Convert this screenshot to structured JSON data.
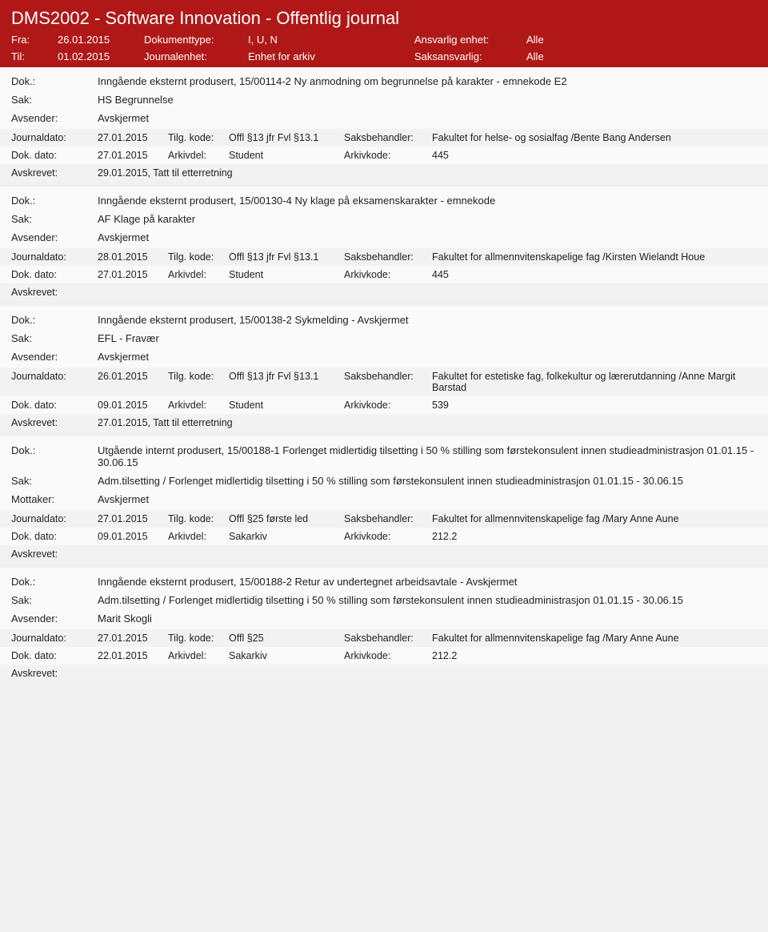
{
  "header": {
    "title": "DMS2002 - Software Innovation - Offentlig journal",
    "fra_label": "Fra:",
    "fra_value": "26.01.2015",
    "til_label": "Til:",
    "til_value": "01.02.2015",
    "doktype_label": "Dokumenttype:",
    "doktype_value": "I, U, N",
    "journalenhet_label": "Journalenhet:",
    "journalenhet_value": "Enhet for arkiv",
    "ansvarlig_label": "Ansvarlig enhet:",
    "ansvarlig_value": "Alle",
    "saksansvarlig_label": "Saksansvarlig:",
    "saksansvarlig_value": "Alle"
  },
  "labels": {
    "dok": "Dok.:",
    "sak": "Sak:",
    "avsender": "Avsender:",
    "mottaker": "Mottaker:",
    "journaldato": "Journaldato:",
    "tilgkode": "Tilg. kode:",
    "saksbehandler": "Saksbehandler:",
    "dokdato": "Dok. dato:",
    "arkivdel": "Arkivdel:",
    "arkivkode": "Arkivkode:",
    "avskrevet": "Avskrevet:"
  },
  "entries": [
    {
      "dok": "Inngående eksternt produsert, 15/00114-2 Ny anmodning om begrunnelse på karakter - emnekode E2",
      "sak": "HS Begrunnelse",
      "party_label": "Avsender:",
      "party_value": "Avskjermet",
      "journaldato": "27.01.2015",
      "tilgkode": "Offl §13 jfr Fvl §13.1",
      "saksbehandler": "Fakultet for helse- og sosialfag /Bente Bang Andersen",
      "dokdato": "27.01.2015",
      "arkivdel": "Student",
      "arkivkode": "445",
      "avskrevet": "29.01.2015, Tatt til etterretning"
    },
    {
      "dok": "Inngående eksternt produsert, 15/00130-4 Ny klage på eksamenskarakter - emnekode",
      "sak": "AF Klage på karakter",
      "party_label": "Avsender:",
      "party_value": "Avskjermet",
      "journaldato": "28.01.2015",
      "tilgkode": "Offl §13 jfr Fvl §13.1",
      "saksbehandler": "Fakultet for allmennvitenskapelige fag /Kirsten Wielandt Houe",
      "dokdato": "27.01.2015",
      "arkivdel": "Student",
      "arkivkode": "445",
      "avskrevet": ""
    },
    {
      "dok": "Inngående eksternt produsert, 15/00138-2 Sykmelding - Avskjermet",
      "sak": "EFL - Fravær",
      "party_label": "Avsender:",
      "party_value": "Avskjermet",
      "journaldato": "26.01.2015",
      "tilgkode": "Offl §13 jfr Fvl §13.1",
      "saksbehandler": "Fakultet for estetiske fag, folkekultur og lærerutdanning /Anne Margit Barstad",
      "dokdato": "09.01.2015",
      "arkivdel": "Student",
      "arkivkode": "539",
      "avskrevet": "27.01.2015, Tatt til etterretning"
    },
    {
      "dok": "Utgående internt produsert, 15/00188-1 Forlenget midlertidig tilsetting i 50 % stilling som førstekonsulent innen studieadministrasjon 01.01.15 - 30.06.15",
      "sak": "Adm.tilsetting / Forlenget midlertidig tilsetting i 50 % stilling som førstekonsulent innen studieadministrasjon 01.01.15 - 30.06.15",
      "party_label": "Mottaker:",
      "party_value": "Avskjermet",
      "journaldato": "27.01.2015",
      "tilgkode": "Offl §25 første led",
      "saksbehandler": "Fakultet for allmennvitenskapelige fag /Mary Anne Aune",
      "dokdato": "09.01.2015",
      "arkivdel": "Sakarkiv",
      "arkivkode": "212.2",
      "avskrevet": ""
    },
    {
      "dok": "Inngående eksternt produsert, 15/00188-2 Retur av undertegnet arbeidsavtale - Avskjermet",
      "sak": "Adm.tilsetting / Forlenget midlertidig tilsetting i 50 % stilling som førstekonsulent innen studieadministrasjon 01.01.15 - 30.06.15",
      "party_label": "Avsender:",
      "party_value": "Marit Skogli",
      "journaldato": "27.01.2015",
      "tilgkode": "Offl §25",
      "saksbehandler": "Fakultet for allmennvitenskapelige fag /Mary Anne Aune",
      "dokdato": "22.01.2015",
      "arkivdel": "Sakarkiv",
      "arkivkode": "212.2",
      "avskrevet": ""
    }
  ]
}
